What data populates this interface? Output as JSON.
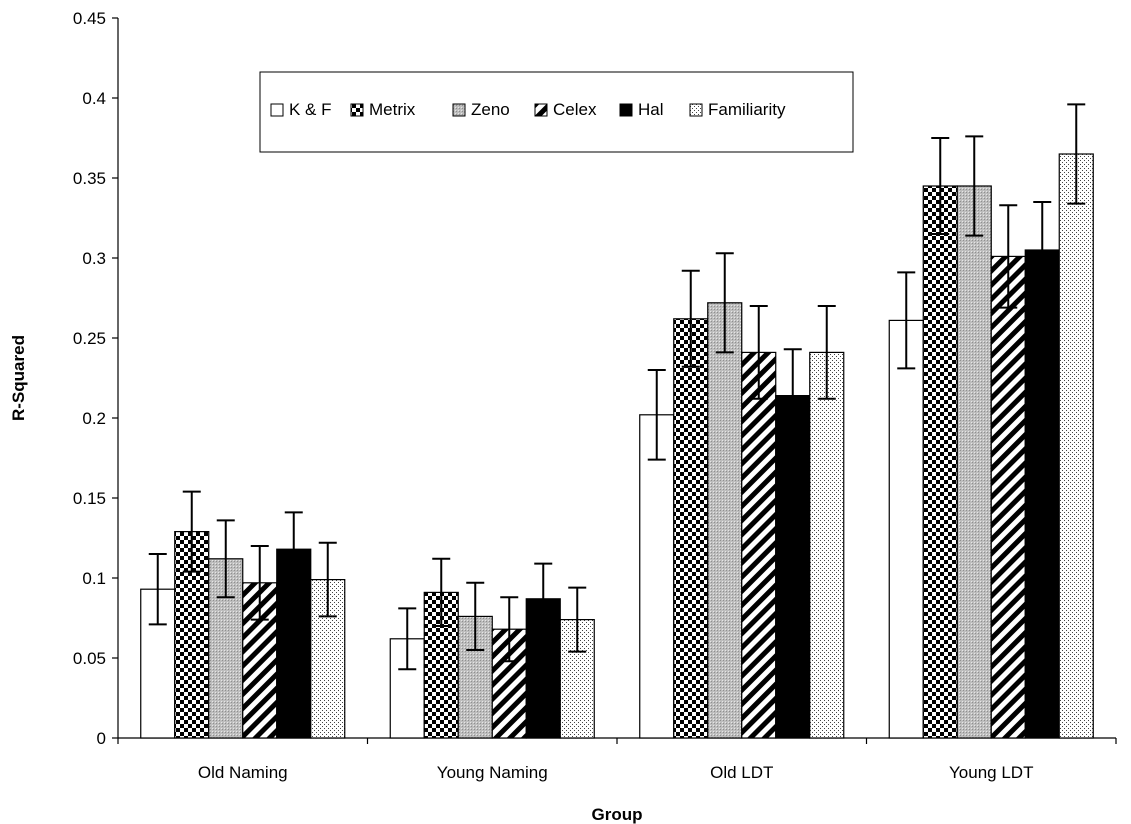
{
  "chart_data": {
    "type": "bar",
    "title": "",
    "xlabel": "Group",
    "ylabel": "R-Squared",
    "ylim": [
      0,
      0.45
    ],
    "yticks": [
      "0",
      "0.05",
      "0.1",
      "0.15",
      "0.2",
      "0.25",
      "0.3",
      "0.35",
      "0.4",
      "0.45"
    ],
    "categories": [
      "Old Naming",
      "Young Naming",
      "Old LDT",
      "Young LDT"
    ],
    "legend_position": "top-center",
    "grid": false,
    "series": [
      {
        "name": "K & F",
        "pattern": "white",
        "values": [
          0.093,
          0.062,
          0.202,
          0.261
        ],
        "errors": [
          0.022,
          0.019,
          0.028,
          0.03
        ]
      },
      {
        "name": "Metrix",
        "pattern": "checker",
        "values": [
          0.129,
          0.091,
          0.262,
          0.345
        ],
        "errors": [
          0.025,
          0.021,
          0.03,
          0.03
        ]
      },
      {
        "name": "Zeno",
        "pattern": "gray",
        "values": [
          0.112,
          0.076,
          0.272,
          0.345
        ],
        "errors": [
          0.024,
          0.021,
          0.031,
          0.031
        ]
      },
      {
        "name": "Celex",
        "pattern": "diagonal",
        "values": [
          0.097,
          0.068,
          0.241,
          0.301
        ],
        "errors": [
          0.023,
          0.02,
          0.029,
          0.032
        ]
      },
      {
        "name": "Hal",
        "pattern": "black",
        "values": [
          0.118,
          0.087,
          0.214,
          0.305
        ],
        "errors": [
          0.023,
          0.022,
          0.029,
          0.03
        ]
      },
      {
        "name": "Familiarity",
        "pattern": "dotted",
        "values": [
          0.099,
          0.074,
          0.241,
          0.365
        ],
        "errors": [
          0.023,
          0.02,
          0.029,
          0.031
        ]
      }
    ]
  }
}
